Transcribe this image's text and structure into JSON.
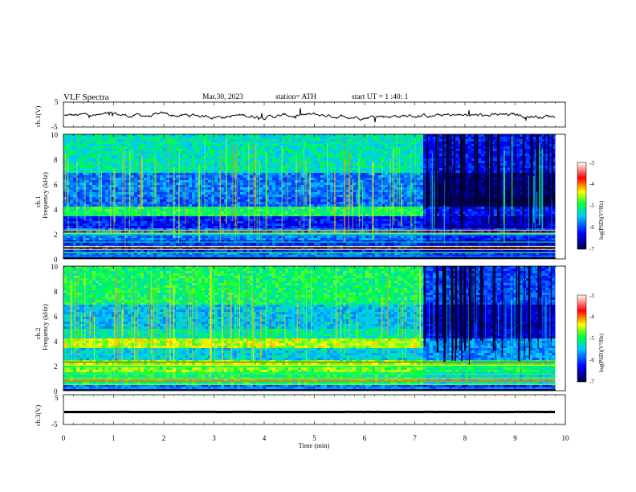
{
  "header": {
    "title": "VLF  Spectra",
    "date": "Mar.30, 2023",
    "station": "station= ATH",
    "start": "start  UT  =   1  :40: 1"
  },
  "chart_data": [
    {
      "type": "line",
      "name": "ch1-waveform",
      "ylabel": "ch.1(V)",
      "yticks": [
        "5",
        "-5"
      ],
      "ylim": [
        -5,
        5
      ],
      "xlim": [
        0,
        10
      ],
      "baseline": -0.5,
      "x_end": 9.8,
      "color": "#000000"
    },
    {
      "type": "heatmap",
      "name": "ch1-spectrogram",
      "ylabel_channel": "ch.1",
      "ylabel": "Frequency  (kHz)",
      "yticks": [
        "10",
        "8",
        "6",
        "4",
        "2",
        "0"
      ],
      "ylim": [
        0,
        10
      ],
      "xlim": [
        0,
        10
      ],
      "x_end": 9.8,
      "regime_change_min": 7.15,
      "colorbar": {
        "label": "log(PSD)(V²/Hz)",
        "ticks": [
          "-3",
          "-4",
          "-5",
          "-6",
          "-7"
        ],
        "range": [
          -7,
          -3
        ],
        "colors": [
          "#000040",
          "#0000ff",
          "#00c8ff",
          "#00ff40",
          "#ffff00",
          "#ff0000",
          "#ffffff"
        ]
      }
    },
    {
      "type": "heatmap",
      "name": "ch2-spectrogram",
      "ylabel_channel": "ch.2",
      "ylabel": "Frequency  (kHz)",
      "yticks": [
        "10",
        "8",
        "6",
        "4",
        "2",
        "0"
      ],
      "ylim": [
        0,
        10
      ],
      "xlim": [
        0,
        10
      ],
      "x_end": 9.8,
      "regime_change_min": 7.15,
      "colorbar": {
        "label": "log(PSD)(V²/Hz)",
        "ticks": [
          "-3",
          "-4",
          "-5",
          "-6",
          "-7"
        ],
        "range": [
          -7,
          -3
        ],
        "colors": [
          "#000040",
          "#0000ff",
          "#00c8ff",
          "#00ff40",
          "#ffff00",
          "#ff0000",
          "#ffffff"
        ]
      }
    },
    {
      "type": "line",
      "name": "ch3-waveform",
      "ylabel": "ch.3(V)",
      "yticks": [
        "5",
        "-5"
      ],
      "ylim": [
        -5,
        5
      ],
      "xlim": [
        0,
        10
      ],
      "baseline": -0.8,
      "x_end": 9.8,
      "color": "#000000"
    }
  ],
  "xaxis": {
    "label": "Time  (min)",
    "ticks": [
      "0",
      "1",
      "2",
      "3",
      "4",
      "5",
      "6",
      "7",
      "8",
      "9",
      "10"
    ],
    "range": [
      0,
      10
    ]
  }
}
